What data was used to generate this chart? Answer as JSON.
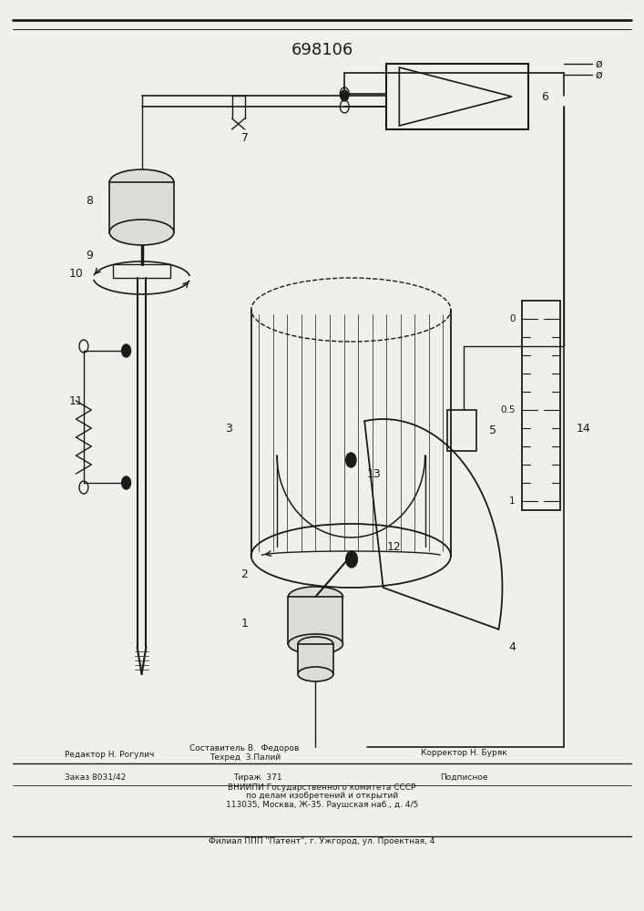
{
  "title": "698106",
  "background_color": "#f0f0eb",
  "line_color": "#1a1a1a",
  "footer_lines": [
    "Составитель В. Федоров",
    "Техред З.Палий",
    "Корректор Н. Буряк",
    "Редактор Н. Рогулич",
    "Заказ 8031/42",
    "Тираж 371",
    "Подписное",
    "ВНИИПИ Государственного комитета СССР",
    "по делам изобретений и открытий",
    "113035, Москва, Ж-35. Раушская наб., д. 4/5",
    "Филиал ППП \"Патент\", г. Ужгород, ул. Проектная, 4"
  ]
}
